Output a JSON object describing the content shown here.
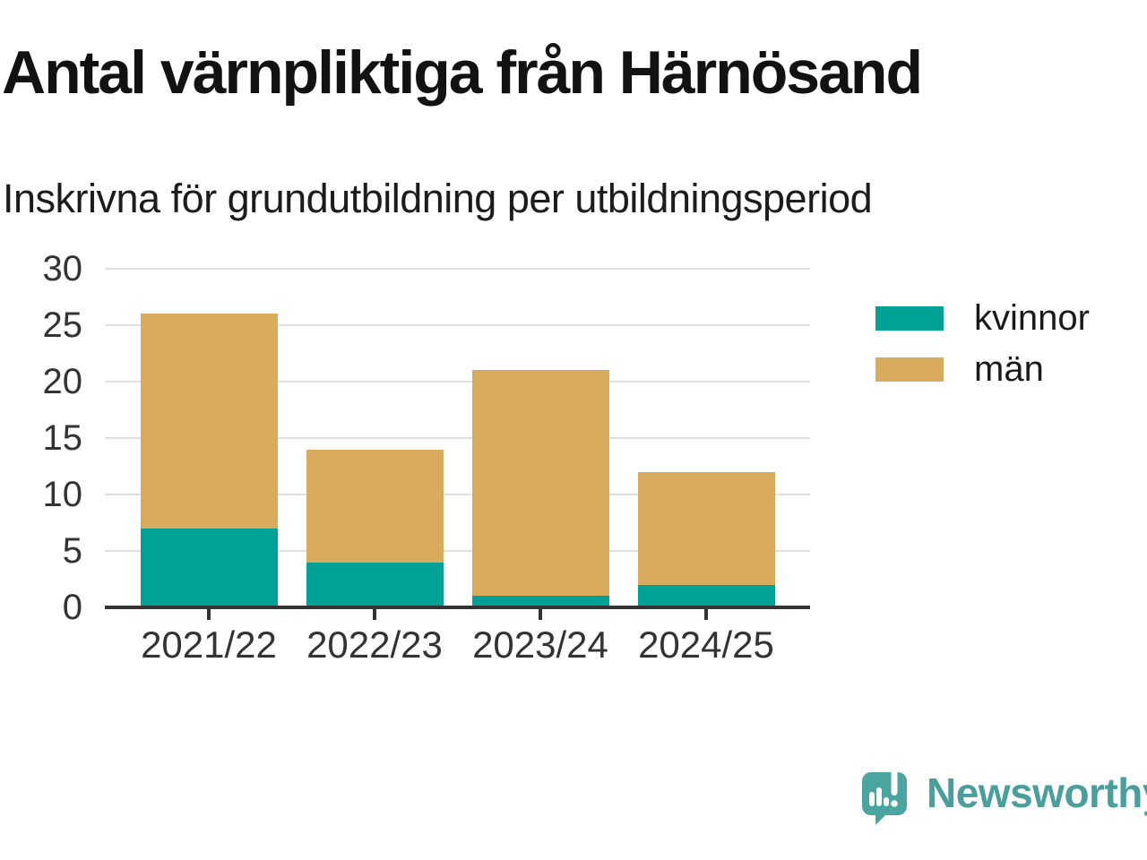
{
  "chart_data": {
    "type": "bar",
    "stacked": true,
    "title": "Antal värnpliktiga från Härnösand",
    "subtitle": "Inskrivna för grundutbildning per utbildningsperiod",
    "categories": [
      "2021/22",
      "2022/23",
      "2023/24",
      "2024/25"
    ],
    "series": [
      {
        "name": "kvinnor",
        "color": "#00a296",
        "values": [
          7,
          4,
          1,
          2
        ]
      },
      {
        "name": "män",
        "color": "#d9ab5c",
        "values": [
          19,
          10,
          20,
          10
        ]
      }
    ],
    "totals": [
      26,
      14,
      21,
      12
    ],
    "xlabel": "",
    "ylabel": "",
    "ylim": [
      0,
      30
    ],
    "yticks": [
      0,
      5,
      10,
      15,
      20,
      25,
      30
    ],
    "grid": "horizontal",
    "legend_position": "right-top"
  },
  "legend": {
    "items": [
      {
        "label": "kvinnor",
        "color": "#00a296"
      },
      {
        "label": "män",
        "color": "#d9ab5c"
      }
    ]
  },
  "branding": {
    "logo_text": "Newsworthy",
    "logo_color": "#4a9e9b",
    "logo_icon": "speech-bubble-bar-chart-icon"
  },
  "colors": {
    "axis": "#333333",
    "gridline": "#e0e0e0",
    "title_text": "#121212",
    "tick_text": "#333333"
  }
}
